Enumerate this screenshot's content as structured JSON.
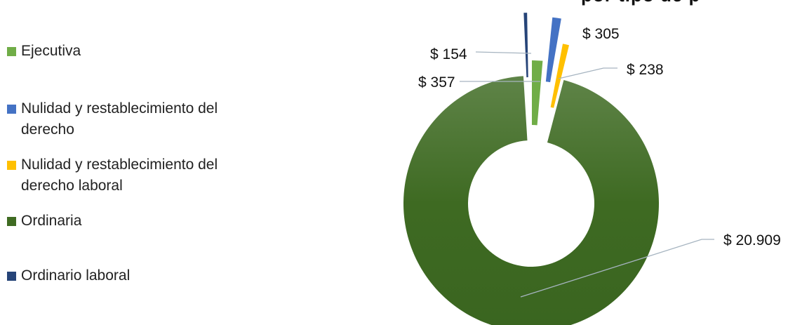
{
  "chart_title_fragment": "por tipo de p",
  "chart_data": {
    "type": "pie",
    "variant": "donut",
    "title": "",
    "legend_position": "left",
    "series": [
      {
        "name": "Ejecutiva",
        "value": 357,
        "label": "$ 357",
        "color": "#70ad47"
      },
      {
        "name": "Nulidad y restablecimiento del derecho",
        "value": 305,
        "label": "$ 305",
        "color": "#4472c4"
      },
      {
        "name": "Nulidad y restablecimiento del derecho laboral",
        "value": 238,
        "label": "$ 238",
        "color": "#ffc000"
      },
      {
        "name": "Ordinaria",
        "value": 20909,
        "label": "$ 20.909",
        "color": "#3f6b22"
      },
      {
        "name": "Ordinario laboral",
        "value": 154,
        "label": "$ 154",
        "color": "#264478"
      }
    ]
  }
}
